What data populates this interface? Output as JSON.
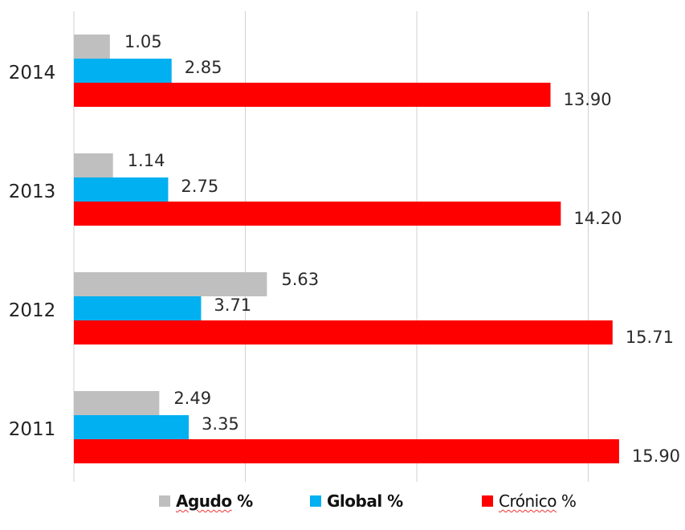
{
  "chart_data": {
    "type": "bar",
    "orientation": "horizontal",
    "categories": [
      "2014",
      "2013",
      "2012",
      "2011"
    ],
    "series": [
      {
        "name": "Agudo %",
        "color": "#bfbfbf",
        "values": [
          1.05,
          1.14,
          5.63,
          2.49
        ],
        "labels": [
          "1.05",
          "1.14",
          "5.63",
          "2.49"
        ]
      },
      {
        "name": "Global %",
        "color": "#00b0f0",
        "values": [
          2.85,
          2.75,
          3.71,
          3.35
        ],
        "labels": [
          "2.85",
          "2.75",
          "3.71",
          "3.35"
        ]
      },
      {
        "name": "Crónico %",
        "color": "#ff0000",
        "values": [
          13.9,
          14.2,
          15.71,
          15.9
        ],
        "labels": [
          "13.90",
          "14.20",
          "15.71",
          "15.90"
        ]
      }
    ],
    "xlim": [
      0,
      20
    ],
    "grid": true,
    "legend": "bottom",
    "title": "",
    "xlabel": "",
    "ylabel": ""
  },
  "legend": {
    "agudo": {
      "word": "Agudo",
      "suffix": "%"
    },
    "global": {
      "word": "Global",
      "suffix": "%"
    },
    "cronico": {
      "word": "Crónico",
      "suffix": "%"
    }
  }
}
